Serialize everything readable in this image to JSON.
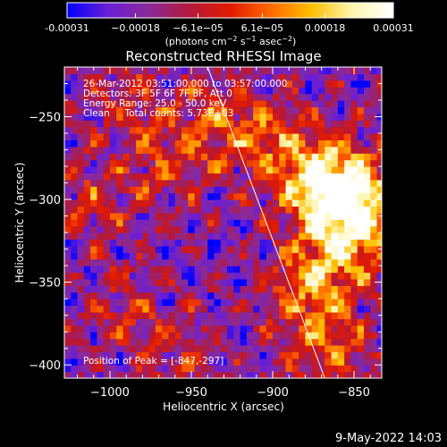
{
  "chart_data": {
    "type": "heatmap",
    "title": "Reconstructed RHESSI Image",
    "xlabel": "Heliocentric X (arcsec)",
    "ylabel": "Heliocentric Y (arcsec)",
    "xlim": [
      -1028,
      -833
    ],
    "ylim": [
      -408,
      -220
    ],
    "xticks": [
      -1000,
      -950,
      -900,
      -850
    ],
    "xtick_labels": [
      "−1000",
      "−950",
      "−900",
      "−850"
    ],
    "yticks": [
      -250,
      -300,
      -350,
      -400
    ],
    "ytick_labels": [
      "−250",
      "−300",
      "−350",
      "−400"
    ],
    "colorbar": {
      "range": [
        -0.00031,
        0.00031
      ],
      "tick_values": [
        -0.00031,
        -0.00018,
        -6.1e-05,
        6.1e-05,
        0.00018,
        0.00031
      ],
      "tick_labels": [
        "-0.00031",
        "−0.00018",
        "−6.1e−05",
        "6.1e−05",
        "0.00018",
        "0.00031"
      ],
      "unit_prefix": "(photons cm",
      "unit_sup1": "−2",
      "unit_mid1": " s",
      "unit_sup2": "−1",
      "unit_mid2": " asec",
      "unit_sup3": "−2",
      "unit_suffix": ")",
      "colors": [
        "#0000ff",
        "#6a1ed6",
        "#8a2a9a",
        "#b4183a",
        "#e21a00",
        "#ff6a00",
        "#ffc000",
        "#fff6b0",
        "#ffffff"
      ]
    },
    "annotations": [
      "26-Mar-2012 03:51:00.000 to 03:57:00.000",
      "Detectors: 3F 5F 6F 7F 8F, Att 0",
      "Energy Range: 25.0 - 50.0 keV",
      "Clean     Total counts: 5.73E+03"
    ],
    "peak": {
      "label": "Position of Peak = [-847,-297]",
      "x": -847,
      "y": -297
    },
    "limb_line": [
      [
        -940,
        -220
      ],
      [
        -868,
        -408
      ]
    ],
    "emission_blobs": [
      {
        "x": -870,
        "y": -290,
        "strength": 1.0
      },
      {
        "x": -848,
        "y": -300,
        "strength": 0.95
      },
      {
        "x": -858,
        "y": -330,
        "strength": 0.7
      },
      {
        "x": -880,
        "y": -355,
        "strength": 0.55
      },
      {
        "x": -865,
        "y": -390,
        "strength": 0.5
      },
      {
        "x": -900,
        "y": -265,
        "strength": 0.45
      },
      {
        "x": -935,
        "y": -255,
        "strength": 0.45
      },
      {
        "x": -965,
        "y": -280,
        "strength": 0.35
      },
      {
        "x": -1010,
        "y": -300,
        "strength": 0.35
      },
      {
        "x": -990,
        "y": -370,
        "strength": 0.3
      },
      {
        "x": -955,
        "y": -395,
        "strength": 0.25
      },
      {
        "x": -985,
        "y": -240,
        "strength": 0.3
      }
    ],
    "colormap_range": [
      -0.00031,
      0.00031
    ]
  },
  "footer": {
    "date_stamp": "9-May-2022 14:03"
  }
}
